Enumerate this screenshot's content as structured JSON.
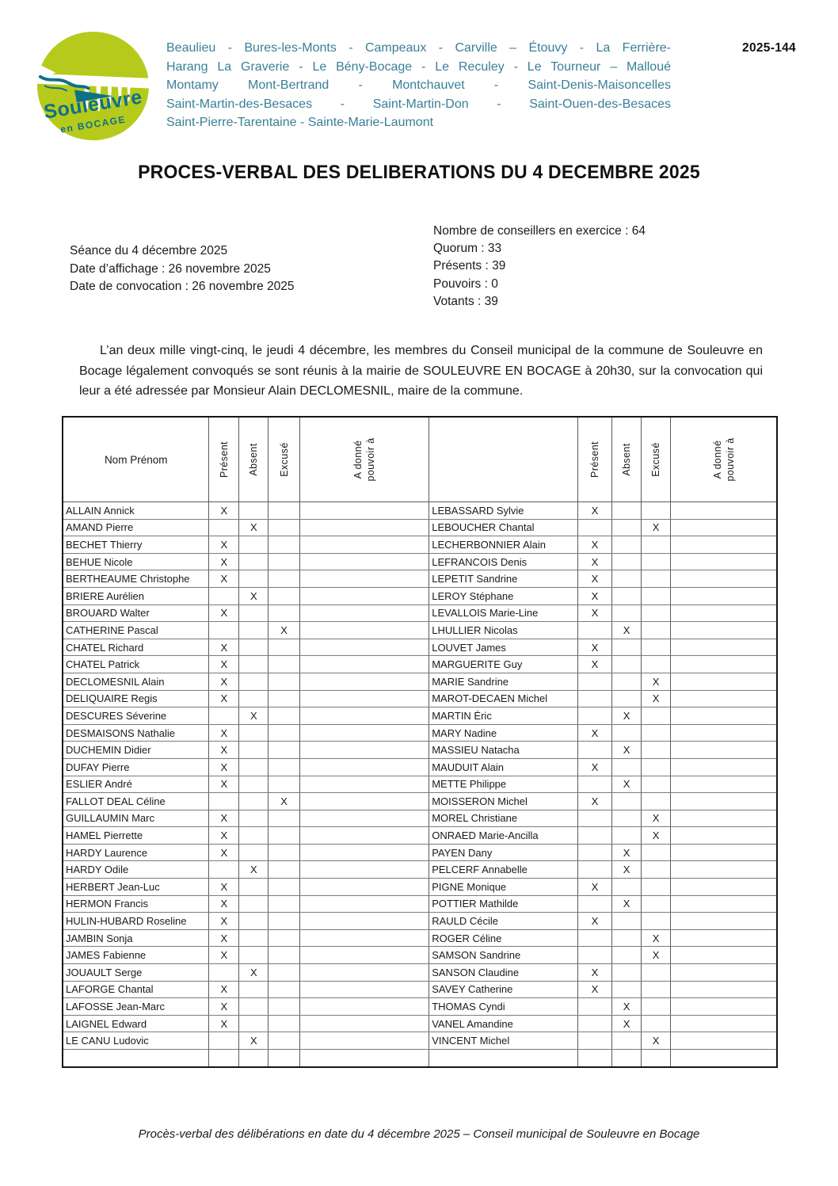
{
  "document": {
    "reference": "2025-144",
    "title": "PROCES-VERBAL DES DELIBERATIONS DU 4 DECEMBRE 2025",
    "footer": "Procès-verbal des délibérations en date du 4 décembre 2025 – Conseil municipal de Souleuvre en Bocage"
  },
  "logo": {
    "title": "Souleuvre",
    "subtitle": "en BOCAGE",
    "circle_color": "#b6ca1b",
    "text_color": "#0f7089"
  },
  "communes": {
    "text_color": "#3a7f98",
    "lines": [
      "Beaulieu - Bures-les-Monts - Campeaux - Carville – Étouvy - La Ferrière-",
      "Harang La Graverie - Le Bény-Bocage - Le Reculey - Le Tourneur – Malloué",
      "Montamy Mont-Bertrand - Montchauvet - Saint-Denis-Maisoncelles",
      "Saint-Martin-des-Besaces - Saint-Martin-Don - Saint-Ouen-des-Besaces",
      "Saint-Pierre-Tarentaine - Sainte-Marie-Laumont"
    ]
  },
  "meeting": {
    "seance": "Séance du 4 décembre 2025",
    "affichage": "Date d’affichage : 26 novembre 2025",
    "convocation": "Date de convocation : 26 novembre 2025",
    "stats": [
      "Nombre de conseillers en exercice : 64",
      "Quorum : 33",
      "Présents : 39",
      "Pouvoirs : 0",
      "Votants : 39"
    ]
  },
  "intro_paragraph": "L’an deux mille vingt-cinq, le jeudi 4 décembre, les membres du Conseil municipal de la commune de Souleuvre en Bocage légalement convoqués se sont réunis à la mairie de SOULEUVRE EN BOCAGE à 20h30, sur la convocation qui leur a été adressée par Monsieur Alain DECLOMESNIL, maire de la commune.",
  "attendance": {
    "mark": "X",
    "headers": {
      "name": "Nom Prénom",
      "present": "Présent",
      "absent": "Absent",
      "excused": "Excusé",
      "pouvoir": "A donné pouvoir à"
    },
    "left": [
      [
        "ALLAIN Annick",
        "P"
      ],
      [
        "AMAND Pierre",
        "A"
      ],
      [
        "BECHET Thierry",
        "P"
      ],
      [
        "BEHUE Nicole",
        "P"
      ],
      [
        "BERTHEAUME Christophe",
        "P"
      ],
      [
        "BRIERE Aurélien",
        "A"
      ],
      [
        "BROUARD Walter",
        "P"
      ],
      [
        "CATHERINE Pascal",
        "E"
      ],
      [
        "CHATEL Richard",
        "P"
      ],
      [
        "CHATEL Patrick",
        "P"
      ],
      [
        "DECLOMESNIL Alain",
        "P"
      ],
      [
        "DELIQUAIRE Regis",
        "P"
      ],
      [
        "DESCURES Séverine",
        "A"
      ],
      [
        "DESMAISONS Nathalie",
        "P"
      ],
      [
        "DUCHEMIN Didier",
        "P"
      ],
      [
        "DUFAY Pierre",
        "P"
      ],
      [
        "ESLIER André",
        "P"
      ],
      [
        "FALLOT DEAL Céline",
        "E"
      ],
      [
        "GUILLAUMIN Marc",
        "P"
      ],
      [
        "HAMEL Pierrette",
        "P"
      ],
      [
        "HARDY Laurence",
        "P"
      ],
      [
        "HARDY Odile",
        "A"
      ],
      [
        "HERBERT Jean-Luc",
        "P"
      ],
      [
        "HERMON Francis",
        "P"
      ],
      [
        "HULIN-HUBARD Roseline",
        "P"
      ],
      [
        "JAMBIN Sonja",
        "P"
      ],
      [
        "JAMES Fabienne",
        "P"
      ],
      [
        "JOUAULT Serge",
        "A"
      ],
      [
        "LAFORGE Chantal",
        "P"
      ],
      [
        "LAFOSSE Jean-Marc",
        "P"
      ],
      [
        "LAIGNEL Edward",
        "P"
      ],
      [
        "LE CANU Ludovic",
        "A"
      ],
      [
        "",
        ""
      ]
    ],
    "right": [
      [
        "LEBASSARD Sylvie",
        "P"
      ],
      [
        "LEBOUCHER Chantal",
        "E"
      ],
      [
        "LECHERBONNIER Alain",
        "P"
      ],
      [
        "LEFRANCOIS Denis",
        "P"
      ],
      [
        "LEPETIT Sandrine",
        "P"
      ],
      [
        "LEROY Stéphane",
        "P"
      ],
      [
        "LEVALLOIS Marie-Line",
        "P"
      ],
      [
        "LHULLIER Nicolas",
        "A"
      ],
      [
        "LOUVET James",
        "P"
      ],
      [
        "MARGUERITE Guy",
        "P"
      ],
      [
        "MARIE Sandrine",
        "E"
      ],
      [
        "MAROT-DECAEN Michel",
        "E"
      ],
      [
        "MARTIN Éric",
        "A"
      ],
      [
        "MARY Nadine",
        "P"
      ],
      [
        "MASSIEU Natacha",
        "A"
      ],
      [
        "MAUDUIT Alain",
        "P"
      ],
      [
        "METTE Philippe",
        "A"
      ],
      [
        "MOISSERON Michel",
        "P"
      ],
      [
        "MOREL Christiane",
        "E"
      ],
      [
        "ONRAED Marie-Ancilla",
        "E"
      ],
      [
        "PAYEN Dany",
        "A"
      ],
      [
        "PELCERF Annabelle",
        "A"
      ],
      [
        "PIGNE Monique",
        "P"
      ],
      [
        "POTTIER Mathilde",
        "A"
      ],
      [
        "RAULD Cécile",
        "P"
      ],
      [
        "ROGER Céline",
        "E"
      ],
      [
        "SAMSON Sandrine",
        "E"
      ],
      [
        "SANSON Claudine",
        "P"
      ],
      [
        "SAVEY Catherine",
        "P"
      ],
      [
        "THOMAS Cyndi",
        "A"
      ],
      [
        "VANEL Amandine",
        "A"
      ],
      [
        "VINCENT Michel",
        "E"
      ],
      [
        "",
        ""
      ]
    ]
  }
}
